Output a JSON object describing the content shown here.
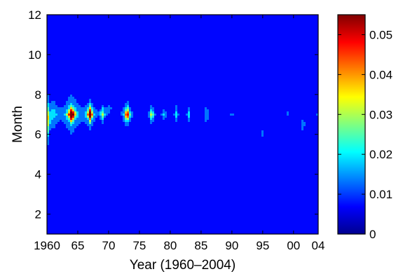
{
  "chart_data": {
    "type": "heatmap",
    "title": "",
    "xlabel": "Year (1960–2004)",
    "ylabel": "Month",
    "xlim": [
      1960,
      2004
    ],
    "ylim": [
      1,
      12
    ],
    "x_ticks": [
      {
        "v": 1960,
        "label": "1960"
      },
      {
        "v": 1965,
        "label": "65"
      },
      {
        "v": 1970,
        "label": "70"
      },
      {
        "v": 1975,
        "label": "75"
      },
      {
        "v": 1980,
        "label": "80"
      },
      {
        "v": 1985,
        "label": "85"
      },
      {
        "v": 1990,
        "label": "90"
      },
      {
        "v": 1995,
        "label": "95"
      },
      {
        "v": 2000,
        "label": "00"
      },
      {
        "v": 2004,
        "label": "04"
      }
    ],
    "y_ticks": [
      {
        "v": 2,
        "label": "2"
      },
      {
        "v": 4,
        "label": "4"
      },
      {
        "v": 6,
        "label": "6"
      },
      {
        "v": 8,
        "label": "8"
      },
      {
        "v": 10,
        "label": "10"
      },
      {
        "v": 12,
        "label": "12"
      }
    ],
    "colorbar": {
      "min": 0,
      "max": 0.055,
      "ticks": [
        {
          "v": 0,
          "label": "0"
        },
        {
          "v": 0.01,
          "label": "0.01"
        },
        {
          "v": 0.02,
          "label": "0.02"
        },
        {
          "v": 0.03,
          "label": "0.03"
        },
        {
          "v": 0.04,
          "label": "0.04"
        },
        {
          "v": 0.05,
          "label": "0.05"
        }
      ],
      "colormap": "jet"
    },
    "peaks": [
      {
        "year": 1960.2,
        "month": 6.7,
        "value": 0.028,
        "sx": 0.35,
        "sy": 1.0
      },
      {
        "year": 1961.0,
        "month": 7.0,
        "value": 0.012,
        "sx": 1.2,
        "sy": 0.8
      },
      {
        "year": 1964.0,
        "month": 7.0,
        "value": 0.055,
        "sx": 0.75,
        "sy": 0.45
      },
      {
        "year": 1964.0,
        "month": 7.0,
        "value": 0.01,
        "sx": 2.2,
        "sy": 1.1
      },
      {
        "year": 1967.0,
        "month": 7.0,
        "value": 0.055,
        "sx": 0.55,
        "sy": 0.38
      },
      {
        "year": 1967.0,
        "month": 7.0,
        "value": 0.008,
        "sx": 1.6,
        "sy": 0.9
      },
      {
        "year": 1969.0,
        "month": 7.0,
        "value": 0.025,
        "sx": 0.45,
        "sy": 0.35
      },
      {
        "year": 1970.0,
        "month": 7.3,
        "value": 0.004,
        "sx": 1.3,
        "sy": 0.7
      },
      {
        "year": 1973.0,
        "month": 7.0,
        "value": 0.047,
        "sx": 0.5,
        "sy": 0.4
      },
      {
        "year": 1973.0,
        "month": 7.0,
        "value": 0.007,
        "sx": 1.3,
        "sy": 0.8
      },
      {
        "year": 1977.0,
        "month": 7.0,
        "value": 0.027,
        "sx": 0.5,
        "sy": 0.4
      },
      {
        "year": 1979.0,
        "month": 7.0,
        "value": 0.012,
        "sx": 0.45,
        "sy": 0.35
      },
      {
        "year": 1981.0,
        "month": 7.0,
        "value": 0.015,
        "sx": 0.35,
        "sy": 0.4
      },
      {
        "year": 1983.0,
        "month": 7.0,
        "value": 0.013,
        "sx": 0.35,
        "sy": 0.4
      },
      {
        "year": 1985.9,
        "month": 7.0,
        "value": 0.011,
        "sx": 0.45,
        "sy": 0.5
      },
      {
        "year": 1985.0,
        "month": 8.1,
        "value": 0.004,
        "sx": 0.4,
        "sy": 0.25
      },
      {
        "year": 1990.0,
        "month": 7.0,
        "value": 0.006,
        "sx": 0.3,
        "sy": 0.2
      },
      {
        "year": 1995.0,
        "month": 6.0,
        "value": 0.007,
        "sx": 0.3,
        "sy": 0.25
      },
      {
        "year": 1999.0,
        "month": 7.0,
        "value": 0.006,
        "sx": 0.3,
        "sy": 0.2
      },
      {
        "year": 2001.5,
        "month": 6.5,
        "value": 0.007,
        "sx": 0.5,
        "sy": 0.4
      },
      {
        "year": 2004.0,
        "month": 7.0,
        "value": 0.006,
        "sx": 0.35,
        "sy": 0.3
      }
    ]
  }
}
